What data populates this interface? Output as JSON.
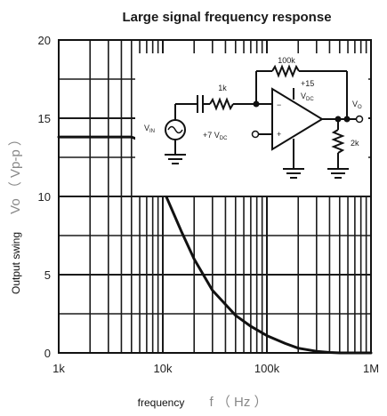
{
  "chart_data": {
    "type": "line",
    "title": "Large signal frequency response",
    "xlabel": "frequency",
    "xunit": "f （ Hz ）",
    "ylabel": "Output swing",
    "yunit": "Vo （ Vp-p ）",
    "xscale": "log",
    "xlim": [
      1000,
      1000000
    ],
    "ylim": [
      0,
      20
    ],
    "x_ticks": [
      {
        "value": 1000,
        "label": "1k"
      },
      {
        "value": 10000,
        "label": "10k"
      },
      {
        "value": 100000,
        "label": "100k"
      },
      {
        "value": 1000000,
        "label": "1M"
      }
    ],
    "y_ticks": [
      {
        "value": 0,
        "label": "0"
      },
      {
        "value": 5,
        "label": "5"
      },
      {
        "value": 10,
        "label": "10"
      },
      {
        "value": 15,
        "label": "15"
      },
      {
        "value": 20,
        "label": "20"
      }
    ],
    "grid": true,
    "series": [
      {
        "x": [
          1000,
          3000,
          5000,
          6000,
          7000,
          8000,
          10000,
          15000,
          20000,
          30000,
          50000,
          70000,
          100000,
          150000,
          200000,
          300000,
          400000,
          500000,
          1000000
        ],
        "y": [
          13.8,
          13.8,
          13.8,
          13.6,
          13.0,
          12.2,
          10.5,
          7.8,
          6.0,
          4.0,
          2.4,
          1.7,
          1.1,
          0.6,
          0.3,
          0.1,
          0.03,
          0,
          0
        ]
      }
    ],
    "inset_circuit": {
      "labels": [
        "100k",
        "+15",
        "V",
        "DC",
        "1k",
        "V",
        "IN",
        "+7 V",
        "DC",
        "V",
        "O",
        "2k"
      ]
    }
  },
  "colors": {
    "curve": "#111111",
    "grid": "#1a1a1a",
    "frame": "#111111"
  }
}
